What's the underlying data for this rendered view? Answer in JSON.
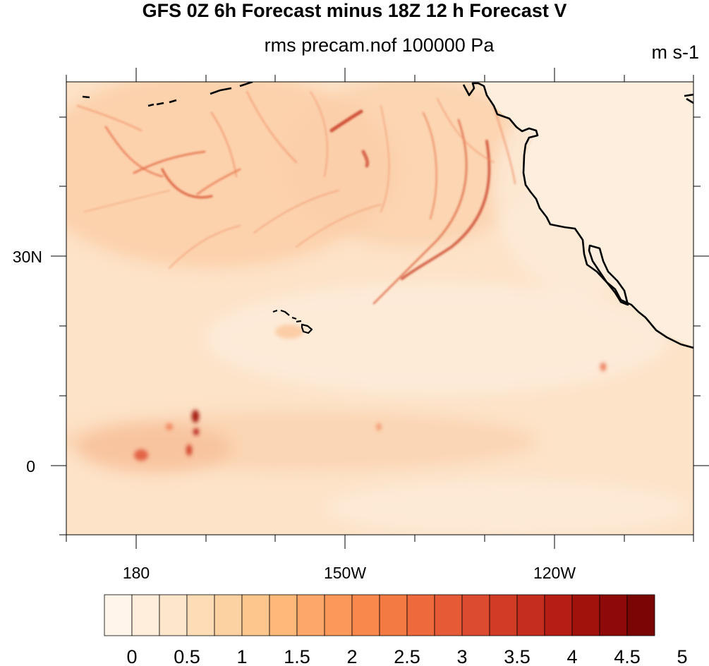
{
  "title": "GFS 0Z 6h Forecast minus 18Z 12 h Forecast V",
  "subtitle": "rms precam.nof 100000 Pa",
  "units": "m s-1",
  "map": {
    "lat_labels": [
      "30N",
      "0"
    ],
    "lon_labels": [
      "180",
      "150W",
      "120W"
    ],
    "lat_range": [
      -10,
      45
    ],
    "lon_range": [
      170,
      260
    ],
    "features": [
      "hawaii-islands",
      "north-america-coast",
      "baja-california"
    ]
  },
  "colorbar": {
    "labels": [
      "0",
      "0.5",
      "1",
      "1.5",
      "2",
      "2.5",
      "3",
      "3.5",
      "4",
      "4.5",
      "5"
    ],
    "colors": [
      "#fff5eb",
      "#feeedb",
      "#fee6cc",
      "#fddcb6",
      "#fdd2a2",
      "#fdc68c",
      "#fdb87a",
      "#fda86a",
      "#fc985a",
      "#f9884c",
      "#f47a44",
      "#ee6a3d",
      "#e65b36",
      "#dc4b2f",
      "#d13c27",
      "#c52d1f",
      "#b51d15",
      "#a2120d",
      "#8d0a08",
      "#7a0505"
    ]
  }
}
